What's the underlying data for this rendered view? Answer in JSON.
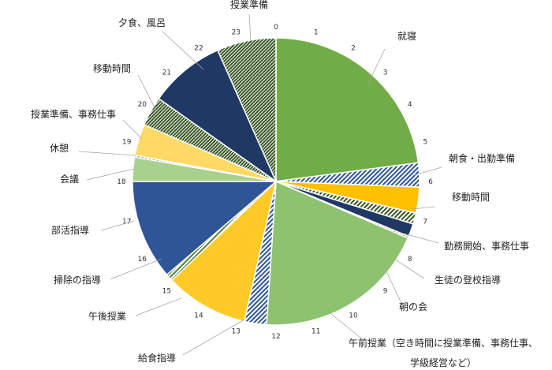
{
  "chart_data": {
    "type": "pie",
    "start_hour": 0,
    "hour_ticks": [
      "0",
      "1",
      "2",
      "3",
      "4",
      "5",
      "6",
      "7",
      "8",
      "9",
      "10",
      "11",
      "12",
      "13",
      "14",
      "15",
      "16",
      "17",
      "18",
      "19",
      "20",
      "21",
      "22",
      "23"
    ],
    "slices": [
      {
        "label": "就寝",
        "start": 0,
        "end": 5.5,
        "color": "#70ad47",
        "pattern": "solid"
      },
      {
        "label": "朝食・出勤準備",
        "start": 5.5,
        "end": 6.15,
        "color": "#2f5597",
        "pattern": "hatch-light"
      },
      {
        "label": "移動時間",
        "start": 6.15,
        "end": 6.85,
        "color": "#ffc000",
        "pattern": "solid"
      },
      {
        "label": "勤務開始、事務仕事",
        "start": 6.85,
        "end": 7.15,
        "color": "#375623",
        "pattern": "hatch-light"
      },
      {
        "label": "生徒の登校指導",
        "start": 7.15,
        "end": 7.5,
        "color": "#1f3864",
        "pattern": "solid"
      },
      {
        "label": "朝の会",
        "start": 7.5,
        "end": 7.55,
        "color": "#c55a11",
        "pattern": "hatch-light"
      },
      {
        "label": "午前授業（空き時間に授業準備、事務仕事、学級経営など）",
        "start": 7.55,
        "end": 12.25,
        "color": "#8dc26f",
        "pattern": "solid"
      },
      {
        "label": "給食指導",
        "start": 12.25,
        "end": 12.85,
        "color": "#2f5597",
        "pattern": "hatch-light"
      },
      {
        "label": "午後授業",
        "start": 12.85,
        "end": 15.1,
        "color": "#ffca28",
        "pattern": "solid"
      },
      {
        "label": "掃除の指導",
        "start": 15.1,
        "end": 15.3,
        "color": "#548235",
        "pattern": "hatch-light"
      },
      {
        "label": "部活指導",
        "start": 15.3,
        "end": 18,
        "color": "#2f5597",
        "pattern": "solid"
      },
      {
        "label": "会議",
        "start": 18,
        "end": 18.65,
        "color": "#a9d18e",
        "pattern": "solid"
      },
      {
        "label": "休憩",
        "start": 18.65,
        "end": 18.7,
        "color": "#2f5597",
        "pattern": "hatch-light"
      },
      {
        "label": "授業準備、事務仕事",
        "start": 18.7,
        "end": 19.55,
        "color": "#ffd966",
        "pattern": "solid"
      },
      {
        "label": "移動時間",
        "start": 19.55,
        "end": 20.35,
        "color": "#375623",
        "pattern": "hatch-dense"
      },
      {
        "label": "夕食、風呂",
        "start": 20.35,
        "end": 22.4,
        "color": "#1f3864",
        "pattern": "solid"
      },
      {
        "label": "授業準備",
        "start": 22.4,
        "end": 24,
        "color": "#375623",
        "pattern": "hatch-dense"
      }
    ]
  }
}
